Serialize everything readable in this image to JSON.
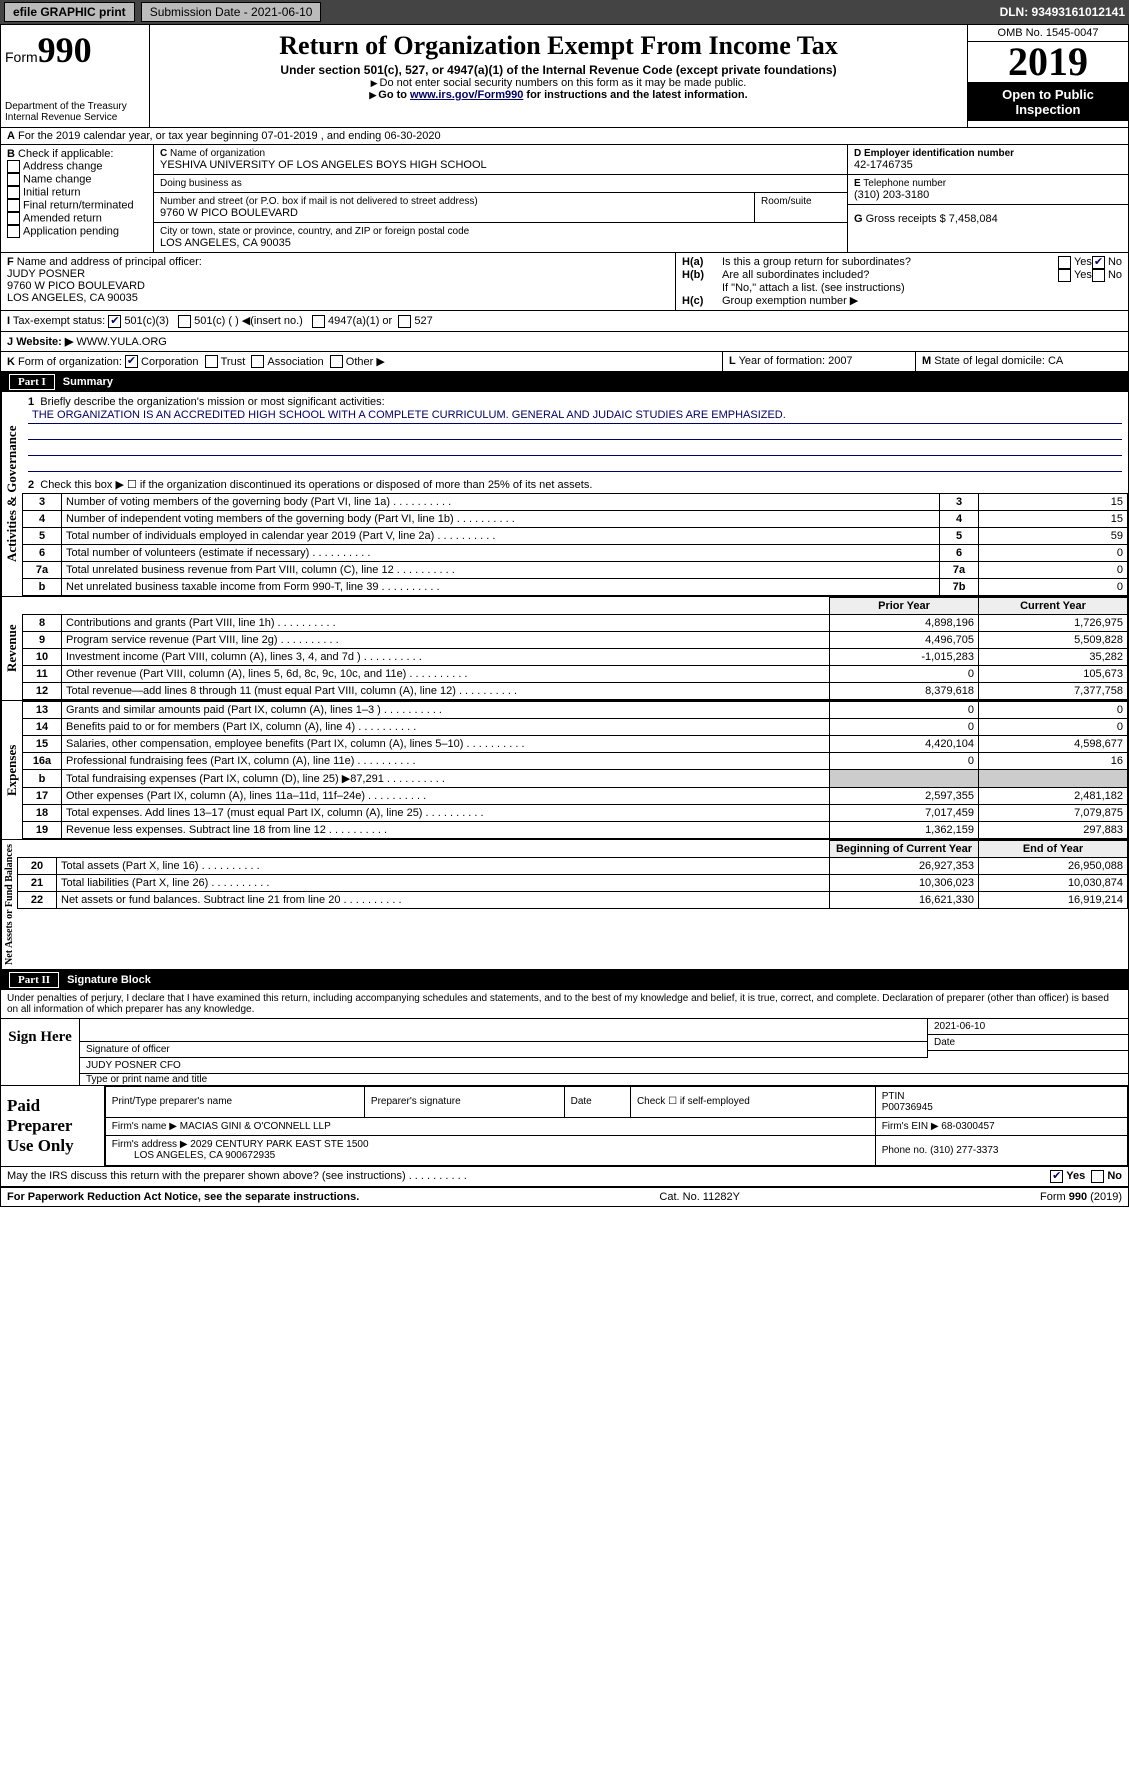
{
  "topbar": {
    "efile": "efile GRAPHIC print",
    "submission": "Submission Date - 2021-06-10",
    "dln": "DLN: 93493161012141"
  },
  "header": {
    "form_prefix": "Form",
    "form_num": "990",
    "dept": "Department of the Treasury",
    "irs": "Internal Revenue Service",
    "title": "Return of Organization Exempt From Income Tax",
    "sub1": "Under section 501(c), 527, or 4947(a)(1) of the Internal Revenue Code (except private foundations)",
    "sub2": "Do not enter social security numbers on this form as it may be made public.",
    "sub3_a": "Go to ",
    "sub3_link": "www.irs.gov/Form990",
    "sub3_b": " for instructions and the latest information.",
    "omb": "OMB No. 1545-0047",
    "year": "2019",
    "open": "Open to Public Inspection"
  },
  "rowA": {
    "text": "For the 2019 calendar year, or tax year beginning 07-01-2019  , and ending 06-30-2020",
    "A": "A"
  },
  "B": {
    "label": "Check if applicable:",
    "opts": [
      "Address change",
      "Name change",
      "Initial return",
      "Final return/terminated",
      "Amended return",
      "Application pending"
    ],
    "letter": "B"
  },
  "C": {
    "name_lbl": "Name of organization",
    "name": "YESHIVA UNIVERSITY OF LOS ANGELES BOYS HIGH SCHOOL",
    "dba_lbl": "Doing business as",
    "dba": "",
    "addr_lbl": "Number and street (or P.O. box if mail is not delivered to street address)",
    "room_lbl": "Room/suite",
    "addr": "9760 W PICO BOULEVARD",
    "city_lbl": "City or town, state or province, country, and ZIP or foreign postal code",
    "city": "LOS ANGELES, CA  90035",
    "letter": "C"
  },
  "D": {
    "lbl": "Employer identification number",
    "val": "42-1746735",
    "letter": "D"
  },
  "E": {
    "lbl": "Telephone number",
    "val": "(310) 203-3180",
    "letter": "E"
  },
  "G": {
    "lbl": "Gross receipts $",
    "val": "7,458,084",
    "letter": "G"
  },
  "F": {
    "lbl": "Name and address of principal officer:",
    "name": "JUDY POSNER",
    "addr": "9760 W PICO BOULEVARD",
    "city": "LOS ANGELES, CA  90035",
    "letter": "F"
  },
  "H": {
    "a": "Is this a group return for subordinates?",
    "a_no": "No",
    "a_yes": "Yes",
    "b": "Are all subordinates included?",
    "b_yes": "Yes",
    "b_no": "No",
    "b2": "If \"No,\" attach a list. (see instructions)",
    "c": "Group exemption number ▶",
    "Ha": "H(a)",
    "Hb": "H(b)",
    "Hc": "H(c)"
  },
  "I": {
    "lbl": "Tax-exempt status:",
    "o1": "501(c)(3)",
    "o2": "501(c) (  ) ◀(insert no.)",
    "o3": "4947(a)(1) or",
    "o4": "527",
    "letter": "I"
  },
  "J": {
    "lbl": "Website: ▶",
    "val": "WWW.YULA.ORG",
    "letter": "J"
  },
  "K": {
    "lbl": "Form of organization:",
    "o1": "Corporation",
    "o2": "Trust",
    "o3": "Association",
    "o4": "Other ▶",
    "letter": "K"
  },
  "L": {
    "lbl": "Year of formation:",
    "val": "2007",
    "letter": "L"
  },
  "M": {
    "lbl": "State of legal domicile:",
    "val": "CA",
    "letter": "M"
  },
  "part1": {
    "num": "Part I",
    "title": "Summary"
  },
  "summary": {
    "l1": "Briefly describe the organization's mission or most significant activities:",
    "mission": "THE ORGANIZATION IS AN ACCREDITED HIGH SCHOOL WITH A COMPLETE CURRICULUM. GENERAL AND JUDAIC STUDIES ARE EMPHASIZED.",
    "l2": "Check this box ▶ ☐  if the organization discontinued its operations or disposed of more than 25% of its net assets.",
    "rows": [
      {
        "n": "3",
        "t": "Number of voting members of the governing body (Part VI, line 1a)",
        "i": "3",
        "v": "15"
      },
      {
        "n": "4",
        "t": "Number of independent voting members of the governing body (Part VI, line 1b)",
        "i": "4",
        "v": "15"
      },
      {
        "n": "5",
        "t": "Total number of individuals employed in calendar year 2019 (Part V, line 2a)",
        "i": "5",
        "v": "59"
      },
      {
        "n": "6",
        "t": "Total number of volunteers (estimate if necessary)",
        "i": "6",
        "v": "0"
      },
      {
        "n": "7a",
        "t": "Total unrelated business revenue from Part VIII, column (C), line 12",
        "i": "7a",
        "v": "0"
      },
      {
        "n": "b",
        "t": "Net unrelated business taxable income from Form 990-T, line 39",
        "i": "7b",
        "v": "0"
      }
    ],
    "hdr_prior": "Prior Year",
    "hdr_curr": "Current Year",
    "revenue": [
      {
        "n": "8",
        "t": "Contributions and grants (Part VIII, line 1h)",
        "p": "4,898,196",
        "c": "1,726,975"
      },
      {
        "n": "9",
        "t": "Program service revenue (Part VIII, line 2g)",
        "p": "4,496,705",
        "c": "5,509,828"
      },
      {
        "n": "10",
        "t": "Investment income (Part VIII, column (A), lines 3, 4, and 7d )",
        "p": "-1,015,283",
        "c": "35,282"
      },
      {
        "n": "11",
        "t": "Other revenue (Part VIII, column (A), lines 5, 6d, 8c, 9c, 10c, and 11e)",
        "p": "0",
        "c": "105,673"
      },
      {
        "n": "12",
        "t": "Total revenue—add lines 8 through 11 (must equal Part VIII, column (A), line 12)",
        "p": "8,379,618",
        "c": "7,377,758"
      }
    ],
    "expenses": [
      {
        "n": "13",
        "t": "Grants and similar amounts paid (Part IX, column (A), lines 1–3 )",
        "p": "0",
        "c": "0"
      },
      {
        "n": "14",
        "t": "Benefits paid to or for members (Part IX, column (A), line 4)",
        "p": "0",
        "c": "0"
      },
      {
        "n": "15",
        "t": "Salaries, other compensation, employee benefits (Part IX, column (A), lines 5–10)",
        "p": "4,420,104",
        "c": "4,598,677"
      },
      {
        "n": "16a",
        "t": "Professional fundraising fees (Part IX, column (A), line 11e)",
        "p": "0",
        "c": "16"
      },
      {
        "n": "b",
        "t": "Total fundraising expenses (Part IX, column (D), line 25) ▶87,291",
        "p": "",
        "c": ""
      },
      {
        "n": "17",
        "t": "Other expenses (Part IX, column (A), lines 11a–11d, 11f–24e)",
        "p": "2,597,355",
        "c": "2,481,182"
      },
      {
        "n": "18",
        "t": "Total expenses. Add lines 13–17 (must equal Part IX, column (A), line 25)",
        "p": "7,017,459",
        "c": "7,079,875"
      },
      {
        "n": "19",
        "t": "Revenue less expenses. Subtract line 18 from line 12",
        "p": "1,362,159",
        "c": "297,883"
      }
    ],
    "hdr_beg": "Beginning of Current Year",
    "hdr_end": "End of Year",
    "netassets": [
      {
        "n": "20",
        "t": "Total assets (Part X, line 16)",
        "p": "26,927,353",
        "c": "26,950,088"
      },
      {
        "n": "21",
        "t": "Total liabilities (Part X, line 26)",
        "p": "10,306,023",
        "c": "10,030,874"
      },
      {
        "n": "22",
        "t": "Net assets or fund balances. Subtract line 21 from line 20",
        "p": "16,621,330",
        "c": "16,919,214"
      }
    ],
    "side_ag": "Activities & Governance",
    "side_rev": "Revenue",
    "side_exp": "Expenses",
    "side_na": "Net Assets or Fund Balances"
  },
  "part2": {
    "num": "Part II",
    "title": "Signature Block"
  },
  "perjury": "Under penalties of perjury, I declare that I have examined this return, including accompanying schedules and statements, and to the best of my knowledge and belief, it is true, correct, and complete. Declaration of preparer (other than officer) is based on all information of which preparer has any knowledge.",
  "sign": {
    "here": "Sign Here",
    "sig_lbl": "Signature of officer",
    "date": "2021-06-10",
    "date_lbl": "Date",
    "name": "JUDY POSNER CFO",
    "name_lbl": "Type or print name and title"
  },
  "paid": {
    "lbl": "Paid Preparer Use Only",
    "h1": "Print/Type preparer's name",
    "h2": "Preparer's signature",
    "h3": "Date",
    "h4": "Check ☐ if self-employed",
    "h5": "PTIN",
    "ptin": "P00736945",
    "firm_lbl": "Firm's name  ▶",
    "firm": "MACIAS GINI & O'CONNELL LLP",
    "ein_lbl": "Firm's EIN ▶",
    "ein": "68-0300457",
    "addr_lbl": "Firm's address ▶",
    "addr": "2029 CENTURY PARK EAST STE 1500",
    "city": "LOS ANGELES, CA  900672935",
    "phone_lbl": "Phone no.",
    "phone": "(310) 277-3373"
  },
  "discuss": {
    "q": "May the IRS discuss this return with the preparer shown above? (see instructions)",
    "yes": "Yes",
    "no": "No"
  },
  "footer": {
    "pra": "For Paperwork Reduction Act Notice, see the separate instructions.",
    "cat": "Cat. No. 11282Y",
    "form": "Form 990 (2019)"
  }
}
